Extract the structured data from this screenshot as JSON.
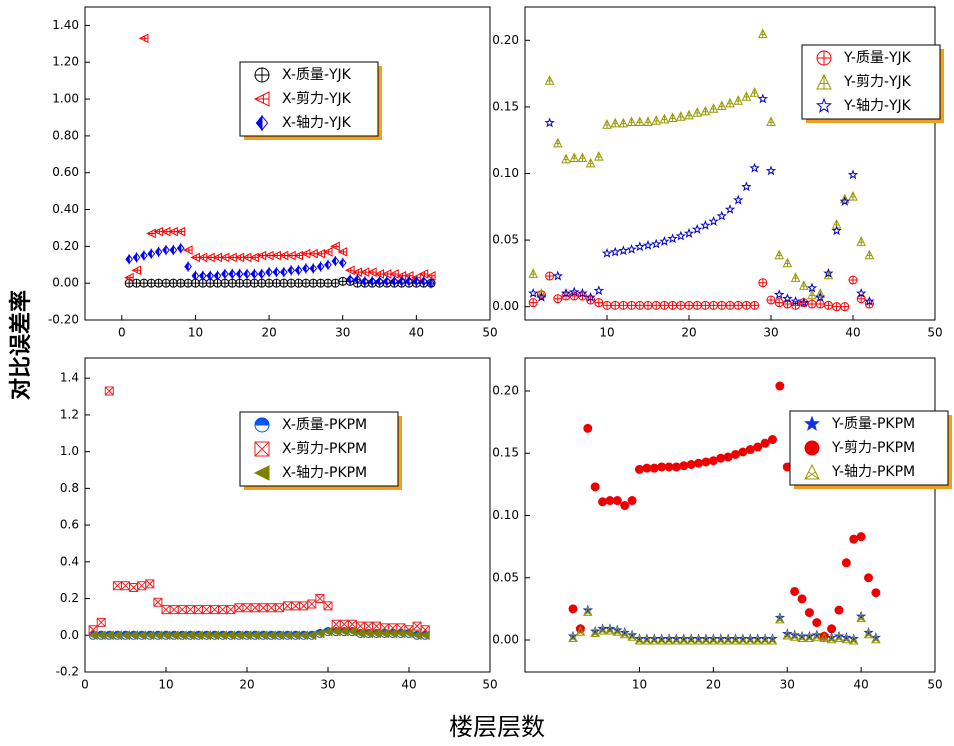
{
  "ylabel": "对比误差率",
  "xlabel": "楼层层数",
  "chart_data": [
    {
      "type": "scatter",
      "x": [
        1,
        2,
        3,
        4,
        5,
        6,
        7,
        8,
        9,
        10,
        11,
        12,
        13,
        14,
        15,
        16,
        17,
        18,
        19,
        20,
        21,
        22,
        23,
        24,
        25,
        26,
        27,
        28,
        29,
        30,
        31,
        32,
        33,
        34,
        35,
        36,
        37,
        38,
        39,
        40,
        41,
        42
      ],
      "xlim": [
        -5,
        50
      ],
      "xticks": [
        0,
        10,
        20,
        30,
        40,
        50
      ],
      "ylim": [
        -0.2,
        1.5
      ],
      "yticks": [
        {
          "value": -0.2,
          "label": "-0.20"
        },
        {
          "value": 0,
          "label": "0.00"
        },
        {
          "value": 0.2,
          "label": "0.20"
        },
        {
          "value": 0.4,
          "label": "0.40"
        },
        {
          "value": 0.6,
          "label": "0.60"
        },
        {
          "value": 0.8,
          "label": "0.80"
        },
        {
          "value": 1.0,
          "label": "1.00"
        },
        {
          "value": 1.2,
          "label": "1.20"
        },
        {
          "value": 1.4,
          "label": "1.40"
        }
      ],
      "series": [
        {
          "name": "X-质量-YJK",
          "color": "#000000",
          "values": [
            0,
            0,
            0,
            0,
            0,
            0,
            0,
            0,
            0,
            0,
            0,
            0,
            0,
            0,
            0,
            0,
            0,
            0,
            0,
            0,
            0,
            0,
            0,
            0,
            0,
            0,
            0,
            0,
            0,
            0.01,
            0.01,
            0,
            0,
            0,
            0,
            0,
            0,
            0,
            0,
            0,
            0,
            0
          ]
        },
        {
          "name": "X-剪力-YJK",
          "color": "#ff0000",
          "values": [
            0.03,
            0.07,
            1.33,
            0.27,
            0.28,
            0.28,
            0.28,
            0.28,
            0.18,
            0.14,
            0.14,
            0.14,
            0.14,
            0.14,
            0.14,
            0.14,
            0.14,
            0.14,
            0.15,
            0.15,
            0.15,
            0.15,
            0.15,
            0.15,
            0.16,
            0.16,
            0.16,
            0.17,
            0.2,
            0.17,
            0.07,
            0.06,
            0.06,
            0.06,
            0.05,
            0.05,
            0.05,
            0.04,
            0.04,
            0.03,
            0.05,
            0.04
          ]
        },
        {
          "name": "X-轴力-YJK",
          "color": "#0000ff",
          "values": [
            0.13,
            0.14,
            0.15,
            0.16,
            0.17,
            0.18,
            0.18,
            0.19,
            0.09,
            0.04,
            0.04,
            0.04,
            0.04,
            0.05,
            0.05,
            0.05,
            0.05,
            0.05,
            0.05,
            0.06,
            0.06,
            0.06,
            0.07,
            0.07,
            0.08,
            0.08,
            0.09,
            0.1,
            0.12,
            0.11,
            0.02,
            0.02,
            0.01,
            0.01,
            0.01,
            0.01,
            0.01,
            0.01,
            0.01,
            0.01,
            0.01,
            0
          ]
        }
      ]
    },
    {
      "type": "scatter",
      "x": [
        1,
        2,
        3,
        4,
        5,
        6,
        7,
        8,
        9,
        10,
        11,
        12,
        13,
        14,
        15,
        16,
        17,
        18,
        19,
        20,
        21,
        22,
        23,
        24,
        25,
        26,
        27,
        28,
        29,
        30,
        31,
        32,
        33,
        34,
        35,
        36,
        37,
        38,
        39,
        40,
        41,
        42
      ],
      "xlim": [
        0,
        50
      ],
      "xticks": [
        10,
        20,
        30,
        40,
        50
      ],
      "ylim": [
        -0.01,
        0.225
      ],
      "yticks": [
        {
          "value": 0,
          "label": "0.00"
        },
        0.05,
        {
          "value": 0.1,
          "label": "0.10"
        },
        0.15,
        {
          "value": 0.2,
          "label": "0.20"
        }
      ],
      "series": [
        {
          "name": "Y-质量-YJK",
          "color": "#ff0000",
          "values": [
            0.003,
            0.009,
            0.023,
            0.006,
            0.008,
            0.008,
            0.008,
            0.005,
            0.003,
            0.001,
            0.001,
            0.001,
            0.001,
            0.001,
            0.001,
            0.001,
            0.001,
            0.001,
            0.001,
            0.001,
            0.001,
            0.001,
            0.001,
            0.001,
            0.001,
            0.001,
            0.001,
            0.001,
            0.018,
            0.005,
            0.003,
            0.002,
            0.001,
            0.003,
            0.002,
            0.002,
            0.001,
            0,
            0,
            0.02,
            0.006,
            0.002
          ]
        },
        {
          "name": "Y-剪力-YJK",
          "color": "#999900",
          "values": [
            0.025,
            0.01,
            0.17,
            0.123,
            0.111,
            0.112,
            0.112,
            0.108,
            0.113,
            0.137,
            0.138,
            0.138,
            0.139,
            0.139,
            0.139,
            0.14,
            0.141,
            0.142,
            0.143,
            0.144,
            0.146,
            0.147,
            0.149,
            0.151,
            0.153,
            0.155,
            0.158,
            0.161,
            0.205,
            0.139,
            0.039,
            0.033,
            0.022,
            0.016,
            0.009,
            0.01,
            0.024,
            0.062,
            0.081,
            0.083,
            0.049,
            0.039
          ]
        },
        {
          "name": "Y-轴力-YJK",
          "color": "#0000cc",
          "values": [
            0.01,
            0.007,
            0.138,
            0.023,
            0.01,
            0.011,
            0.01,
            0.007,
            0.012,
            0.04,
            0.041,
            0.042,
            0.043,
            0.045,
            0.046,
            0.047,
            0.049,
            0.051,
            0.053,
            0.055,
            0.058,
            0.061,
            0.064,
            0.068,
            0.073,
            0.08,
            0.09,
            0.104,
            0.156,
            0.102,
            0.009,
            0.006,
            0.004,
            0.003,
            0.014,
            0.007,
            0.025,
            0.057,
            0.079,
            0.099,
            0.01,
            0.004
          ]
        }
      ]
    },
    {
      "type": "scatter",
      "x": [
        1,
        2,
        3,
        4,
        5,
        6,
        7,
        8,
        9,
        10,
        11,
        12,
        13,
        14,
        15,
        16,
        17,
        18,
        19,
        20,
        21,
        22,
        23,
        24,
        25,
        26,
        27,
        28,
        29,
        30,
        31,
        32,
        33,
        34,
        35,
        36,
        37,
        38,
        39,
        40,
        41,
        42
      ],
      "xlim": [
        0,
        50
      ],
      "xticks": [
        0,
        10,
        20,
        30,
        40,
        50
      ],
      "ylim": [
        -0.2,
        1.51
      ],
      "yticks": [
        -0.2,
        {
          "value": 0,
          "label": "0.0"
        },
        0.2,
        0.4,
        0.6,
        0.8,
        {
          "value": 1.0,
          "label": "1.0"
        },
        1.2,
        1.4
      ],
      "series": [
        {
          "name": "X-质量-PKPM",
          "color": "#0055ee",
          "values": [
            0,
            0,
            0,
            0,
            0,
            0,
            0,
            0,
            0,
            0,
            0,
            0,
            0,
            0,
            0,
            0,
            0,
            0,
            0,
            0,
            0,
            0,
            0,
            0,
            0,
            0,
            0,
            0,
            0.01,
            0.02,
            0.02,
            0.02,
            0.02,
            0.01,
            0.01,
            0.01,
            0.01,
            0.01,
            0.01,
            0.01,
            0,
            0
          ]
        },
        {
          "name": "X-剪力-PKPM",
          "color": "#ee2222",
          "values": [
            0.03,
            0.07,
            1.33,
            0.27,
            0.27,
            0.26,
            0.27,
            0.28,
            0.18,
            0.14,
            0.14,
            0.14,
            0.14,
            0.14,
            0.14,
            0.14,
            0.14,
            0.14,
            0.15,
            0.15,
            0.15,
            0.15,
            0.15,
            0.15,
            0.16,
            0.16,
            0.16,
            0.17,
            0.2,
            0.16,
            0.06,
            0.06,
            0.06,
            0.05,
            0.05,
            0.05,
            0.04,
            0.04,
            0.04,
            0.03,
            0.05,
            0.03
          ]
        },
        {
          "name": "X-轴力-PKPM",
          "color": "#808000",
          "values": [
            0,
            0,
            0,
            0,
            0,
            0,
            0,
            0,
            0,
            0,
            0,
            0,
            0,
            0,
            0,
            0,
            0,
            0,
            0,
            0,
            0,
            0,
            0,
            0,
            0,
            0,
            0,
            0,
            0.01,
            0.02,
            0.02,
            0.02,
            0.02,
            0.01,
            0.01,
            0.01,
            0.01,
            0.01,
            0.01,
            0.01,
            0,
            0
          ]
        }
      ]
    },
    {
      "type": "scatter",
      "x": [
        1,
        2,
        3,
        4,
        5,
        6,
        7,
        8,
        9,
        10,
        11,
        12,
        13,
        14,
        15,
        16,
        17,
        18,
        19,
        20,
        21,
        22,
        23,
        24,
        25,
        26,
        27,
        28,
        29,
        30,
        31,
        32,
        33,
        34,
        35,
        36,
        37,
        38,
        39,
        40,
        41,
        42
      ],
      "xlim": [
        -5.5,
        50
      ],
      "xticks": [
        10,
        20,
        30,
        40,
        50
      ],
      "ylim": [
        -0.0257,
        0.2265
      ],
      "yticks": [
        {
          "value": 0,
          "label": "0.00"
        },
        0.05,
        {
          "value": 0.1,
          "label": "0.10"
        },
        0.15,
        {
          "value": 0.2,
          "label": "0.20"
        }
      ],
      "series": [
        {
          "name": "Y-质量-PKPM",
          "color": "#1133dd",
          "values": [
            0.003,
            0.009,
            0.024,
            0.007,
            0.009,
            0.009,
            0.008,
            0.006,
            0.004,
            0.001,
            0.001,
            0.001,
            0.001,
            0.001,
            0.001,
            0.001,
            0.001,
            0.001,
            0.001,
            0.001,
            0.001,
            0.001,
            0.001,
            0.001,
            0.001,
            0.001,
            0.001,
            0.001,
            0.018,
            0.005,
            0.004,
            0.003,
            0.003,
            0.004,
            0.003,
            0.002,
            0.003,
            0.002,
            0.001,
            0.019,
            0.006,
            0.002
          ]
        },
        {
          "name": "Y-剪力-PKPM",
          "color": "#ee0000",
          "values": [
            0.025,
            0.009,
            0.17,
            0.123,
            0.111,
            0.112,
            0.112,
            0.108,
            0.112,
            0.137,
            0.138,
            0.138,
            0.139,
            0.139,
            0.139,
            0.14,
            0.141,
            0.142,
            0.143,
            0.144,
            0.146,
            0.147,
            0.149,
            0.151,
            0.153,
            0.155,
            0.158,
            0.161,
            0.204,
            0.139,
            0.039,
            0.033,
            0.022,
            0.014,
            0.003,
            0.009,
            0.024,
            0.062,
            0.081,
            0.083,
            0.05,
            0.038
          ]
        },
        {
          "name": "Y-轴力-PKPM",
          "color": "#999900",
          "values": [
            0.002,
            0.007,
            0.023,
            0.006,
            0.008,
            0.008,
            0.007,
            0.005,
            0.003,
            0,
            0,
            0,
            0,
            0,
            0,
            0,
            0,
            0,
            0,
            0,
            0,
            0,
            0,
            0,
            0,
            0,
            0,
            0,
            0.017,
            0.004,
            0.003,
            0.002,
            0.002,
            0.003,
            0.002,
            0.001,
            0.002,
            0.001,
            0,
            0.018,
            0.005,
            0.001
          ]
        }
      ]
    }
  ]
}
